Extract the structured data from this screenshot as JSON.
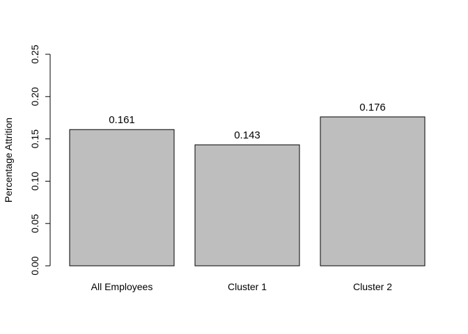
{
  "chart_data": {
    "type": "bar",
    "title": "",
    "xlabel": "",
    "ylabel": "Percentage Attrition",
    "categories": [
      "All Employees",
      "Cluster 1",
      "Cluster 2"
    ],
    "values": [
      0.161,
      0.143,
      0.176
    ],
    "data_labels": [
      "0.161",
      "0.143",
      "0.176"
    ],
    "ylim": [
      0,
      0.25
    ],
    "yticks": [
      0,
      0.05,
      0.1,
      0.15,
      0.2,
      0.25
    ],
    "ytick_labels": [
      "0.00",
      "0.05",
      "0.10",
      "0.15",
      "0.20",
      "0.25"
    ],
    "grid": false,
    "legend": "none",
    "colors": {
      "bar_fill": "#bebebe",
      "bar_stroke": "#000000",
      "axis": "#000000",
      "text": "#000000"
    }
  }
}
